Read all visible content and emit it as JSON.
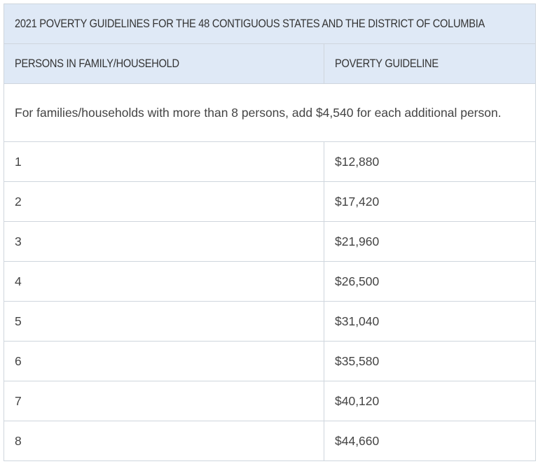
{
  "table": {
    "title": "2021 POVERTY GUIDELINES FOR THE 48 CONTIGUOUS STATES AND THE DISTRICT OF COLUMBIA",
    "headers": [
      "PERSONS IN FAMILY/HOUSEHOLD",
      "POVERTY GUIDELINE"
    ],
    "note": "For families/households with more than 8 persons, add $4,540 for each additional person.",
    "rows": [
      [
        "1",
        "$12,880"
      ],
      [
        "2",
        "$17,420"
      ],
      [
        "3",
        "$21,960"
      ],
      [
        "4",
        "$26,500"
      ],
      [
        "5",
        "$31,040"
      ],
      [
        "6",
        "$35,580"
      ],
      [
        "7",
        "$40,120"
      ],
      [
        "8",
        "$44,660"
      ]
    ]
  }
}
